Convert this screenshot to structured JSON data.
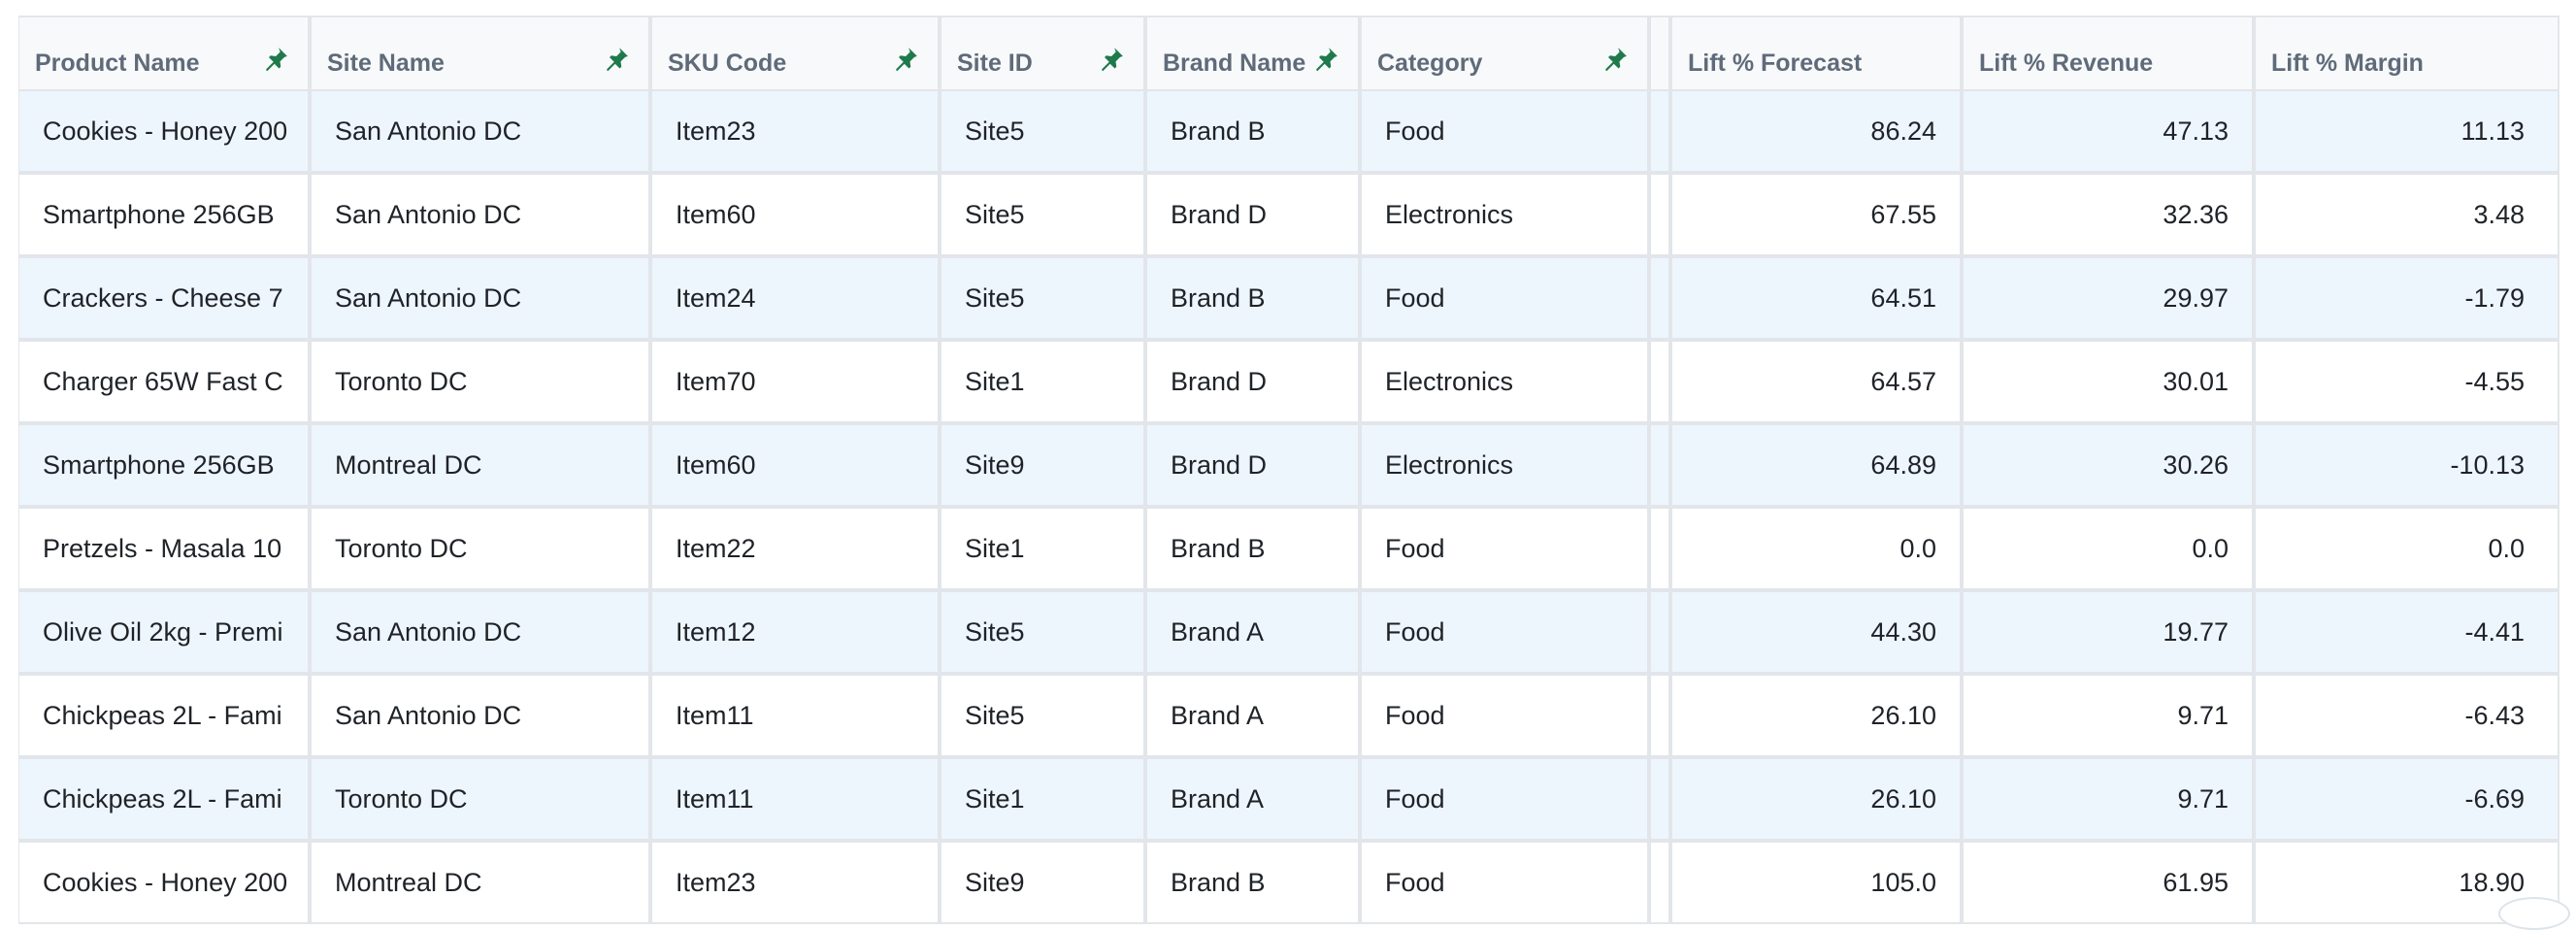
{
  "table": {
    "columns": [
      {
        "key": "product",
        "label": "Product Name",
        "pinned": true,
        "align": "left"
      },
      {
        "key": "site",
        "label": "Site Name",
        "pinned": true,
        "align": "left"
      },
      {
        "key": "sku",
        "label": "SKU Code",
        "pinned": true,
        "align": "left"
      },
      {
        "key": "site_id",
        "label": "Site ID",
        "pinned": true,
        "align": "left"
      },
      {
        "key": "brand",
        "label": "Brand Name",
        "pinned": true,
        "align": "left"
      },
      {
        "key": "category",
        "label": "Category",
        "pinned": true,
        "align": "left"
      },
      {
        "key": "lift_forecast",
        "label": "Lift % Forecast",
        "pinned": false,
        "align": "right"
      },
      {
        "key": "lift_revenue",
        "label": "Lift % Revenue",
        "pinned": false,
        "align": "right"
      },
      {
        "key": "lift_margin",
        "label": "Lift % Margin",
        "pinned": false,
        "align": "right"
      }
    ],
    "rows": [
      {
        "product": "Cookies - Honey 200",
        "site": "San Antonio DC",
        "sku": "Item23",
        "site_id": "Site5",
        "brand": "Brand B",
        "category": "Food",
        "lift_forecast": "86.24",
        "lift_revenue": "47.13",
        "lift_margin": "11.13"
      },
      {
        "product": "Smartphone 256GB",
        "site": "San Antonio DC",
        "sku": "Item60",
        "site_id": "Site5",
        "brand": "Brand D",
        "category": "Electronics",
        "lift_forecast": "67.55",
        "lift_revenue": "32.36",
        "lift_margin": "3.48"
      },
      {
        "product": "Crackers - Cheese 7",
        "site": "San Antonio DC",
        "sku": "Item24",
        "site_id": "Site5",
        "brand": "Brand B",
        "category": "Food",
        "lift_forecast": "64.51",
        "lift_revenue": "29.97",
        "lift_margin": "-1.79"
      },
      {
        "product": "Charger 65W Fast C",
        "site": "Toronto DC",
        "sku": "Item70",
        "site_id": "Site1",
        "brand": "Brand D",
        "category": "Electronics",
        "lift_forecast": "64.57",
        "lift_revenue": "30.01",
        "lift_margin": "-4.55"
      },
      {
        "product": "Smartphone 256GB",
        "site": "Montreal DC",
        "sku": "Item60",
        "site_id": "Site9",
        "brand": "Brand D",
        "category": "Electronics",
        "lift_forecast": "64.89",
        "lift_revenue": "30.26",
        "lift_margin": "-10.13"
      },
      {
        "product": "Pretzels - Masala 10",
        "site": "Toronto DC",
        "sku": "Item22",
        "site_id": "Site1",
        "brand": "Brand B",
        "category": "Food",
        "lift_forecast": "0.0",
        "lift_revenue": "0.0",
        "lift_margin": "0.0"
      },
      {
        "product": "Olive Oil 2kg - Premi",
        "site": "San Antonio DC",
        "sku": "Item12",
        "site_id": "Site5",
        "brand": "Brand A",
        "category": "Food",
        "lift_forecast": "44.30",
        "lift_revenue": "19.77",
        "lift_margin": "-4.41"
      },
      {
        "product": "Chickpeas 2L - Fami",
        "site": "San Antonio DC",
        "sku": "Item11",
        "site_id": "Site5",
        "brand": "Brand A",
        "category": "Food",
        "lift_forecast": "26.10",
        "lift_revenue": "9.71",
        "lift_margin": "-6.43"
      },
      {
        "product": "Chickpeas 2L - Fami",
        "site": "Toronto DC",
        "sku": "Item11",
        "site_id": "Site1",
        "brand": "Brand A",
        "category": "Food",
        "lift_forecast": "26.10",
        "lift_revenue": "9.71",
        "lift_margin": "-6.69"
      },
      {
        "product": "Cookies - Honey 200",
        "site": "Montreal DC",
        "sku": "Item23",
        "site_id": "Site9",
        "brand": "Brand B",
        "category": "Food",
        "lift_forecast": "105.0",
        "lift_revenue": "61.95",
        "lift_margin": "18.90"
      }
    ]
  },
  "icons": {
    "pin": "pin-icon"
  },
  "colors": {
    "pin": "#1e7a4a",
    "header_text": "#5f6b7a",
    "row_alt": "#eef6fd",
    "border": "#e2e6ea"
  }
}
